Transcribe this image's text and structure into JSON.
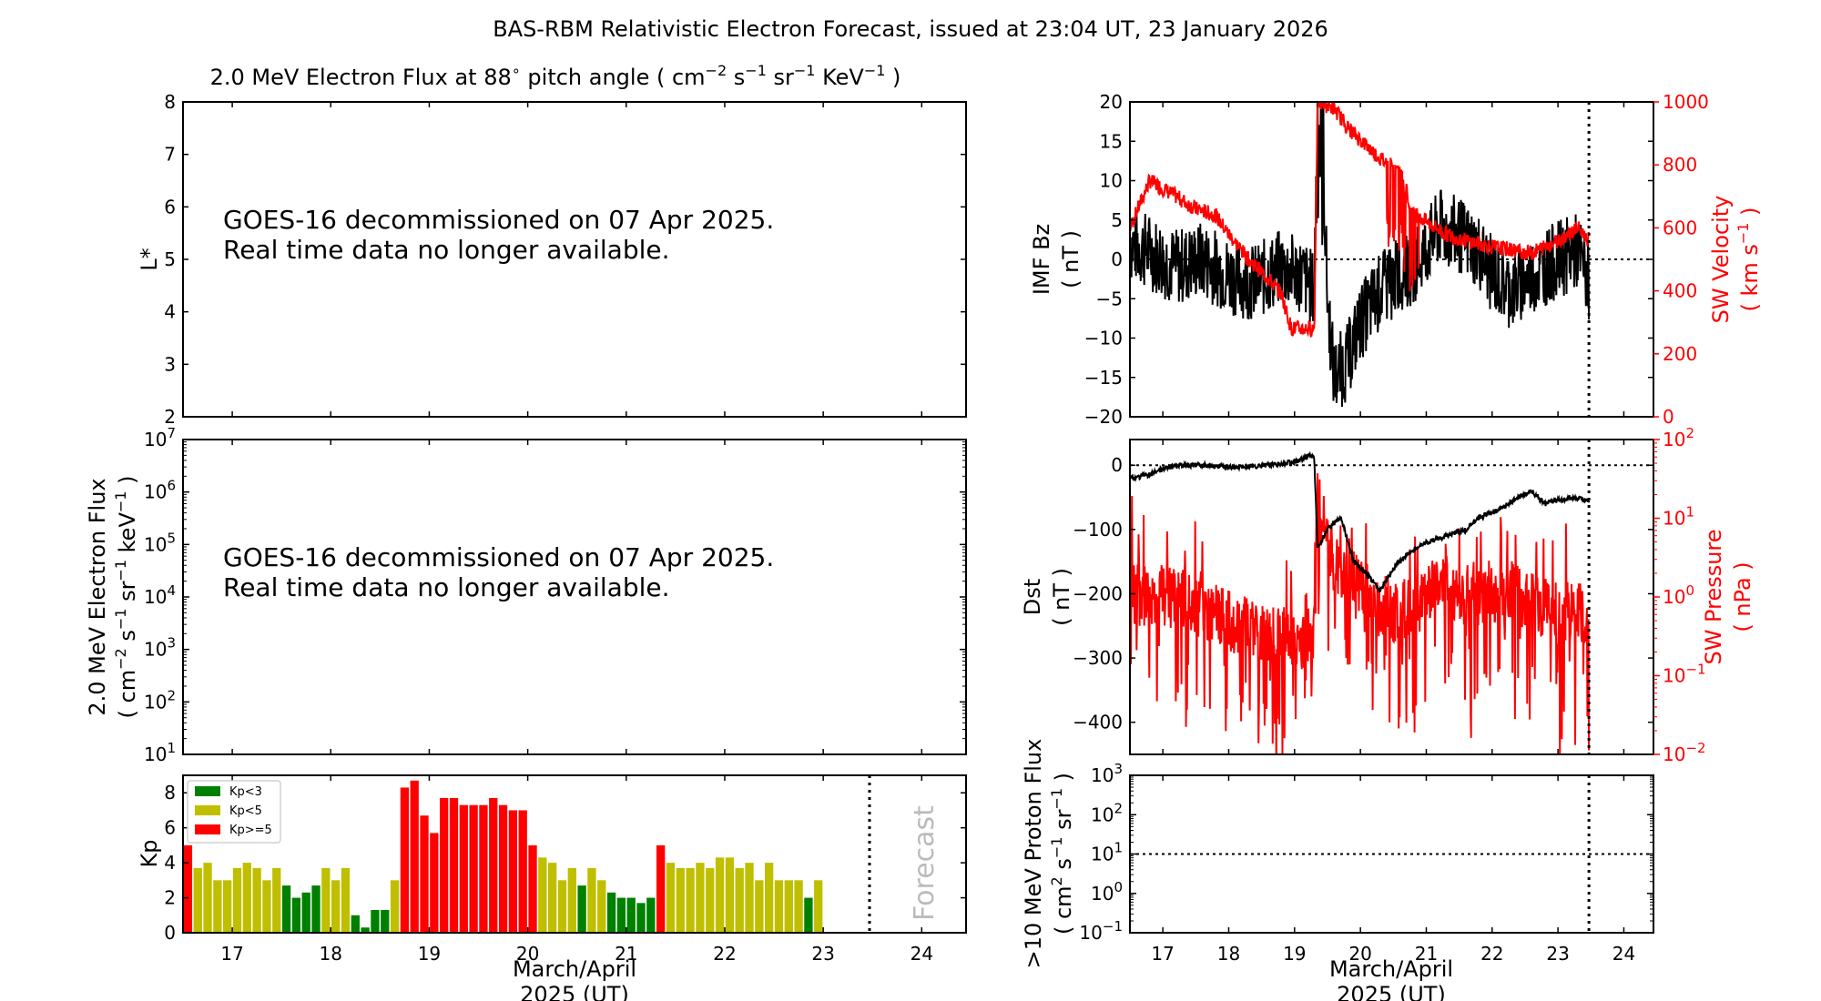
{
  "chart_data": {
    "type": "multi-panel",
    "title": "BAS-RBM Relativistic Electron Forecast, issued at 23:04 UT, 23 January 2026",
    "x_tick_labels": [
      "17",
      "18",
      "19",
      "20",
      "21",
      "22",
      "23",
      "24"
    ],
    "x_label_line1": "March/April",
    "x_label_line2": "2025 (UT)",
    "x_range": [
      16.5,
      24.45
    ],
    "forecast_time": 23.47,
    "panels": {
      "lstar": {
        "title_prefix": "2.0 MeV Electron Flux at 88",
        "title_suffix": " pitch angle ( cm",
        "ylabel": "L*",
        "ylim": [
          2,
          8
        ],
        "yticks": [
          "2",
          "3",
          "4",
          "5",
          "6",
          "7",
          "8"
        ],
        "note_line1": "GOES-16 decommissioned on 07 Apr 2025.",
        "note_line2": "Real time data no longer available."
      },
      "flux": {
        "ylabel_line1": "2.0 MeV Electron Flux",
        "ylabel_line2": "( cm",
        "ylim_exp": [
          1,
          7
        ],
        "ytick_exponents": [
          "1",
          "2",
          "3",
          "4",
          "5",
          "6",
          "7"
        ],
        "note_line1": "GOES-16 decommissioned on 07 Apr 2025.",
        "note_line2": "Real time data no longer available."
      },
      "kp": {
        "type": "bar",
        "ylabel": "Kp",
        "ylim": [
          0,
          9
        ],
        "yticks": [
          "0",
          "2",
          "4",
          "6",
          "8"
        ],
        "start_day": 16.5,
        "bar_width_days": 0.1,
        "values": [
          5.0,
          3.7,
          4.0,
          3.0,
          3.0,
          3.7,
          4.0,
          3.7,
          3.0,
          3.7,
          2.7,
          2.0,
          2.3,
          2.7,
          3.7,
          3.0,
          3.7,
          1.0,
          0.3,
          1.3,
          1.3,
          3.0,
          8.3,
          8.7,
          6.7,
          5.7,
          7.7,
          7.7,
          7.3,
          7.3,
          7.3,
          7.7,
          7.3,
          7.0,
          7.0,
          5.0,
          4.3,
          4.0,
          3.0,
          3.7,
          2.7,
          3.7,
          3.0,
          2.3,
          2.0,
          2.0,
          1.7,
          2.0,
          5.0,
          4.0,
          3.7,
          3.7,
          4.0,
          3.7,
          4.3,
          4.3,
          3.7,
          4.0,
          3.0,
          4.0,
          3.0,
          3.0,
          3.0,
          2.0,
          3.0
        ],
        "legend": [
          "Kp<3",
          "Kp<5",
          "Kp>=5"
        ],
        "colors": {
          "low": "#008000",
          "mid": "#bfbf00",
          "high": "#ff0000"
        },
        "forecast_label": "Forecast"
      },
      "imf": {
        "ylabel_line1": "IMF Bz",
        "ylabel_line2": "( nT )",
        "ylim": [
          -20,
          20
        ],
        "yticks": [
          "−20",
          "−15",
          "−10",
          "−5",
          "0",
          "5",
          "10",
          "15",
          "20"
        ],
        "y2label_line1": "SW Velocity",
        "y2label_line2": "( km s",
        "y2lim": [
          0,
          1000
        ],
        "y2ticks": [
          "0",
          "200",
          "400",
          "600",
          "800",
          "1000"
        ],
        "bz_keypoints": [
          [
            16.5,
            2
          ],
          [
            16.8,
            1
          ],
          [
            17.2,
            -1
          ],
          [
            17.6,
            0
          ],
          [
            18.0,
            -2
          ],
          [
            18.4,
            -3
          ],
          [
            18.8,
            -1
          ],
          [
            19.1,
            -2
          ],
          [
            19.3,
            -4
          ],
          [
            19.35,
            20
          ],
          [
            19.42,
            15
          ],
          [
            19.5,
            -5
          ],
          [
            19.6,
            -15
          ],
          [
            19.8,
            -13
          ],
          [
            20.0,
            -8
          ],
          [
            20.3,
            -4
          ],
          [
            20.6,
            -2
          ],
          [
            20.9,
            0
          ],
          [
            21.2,
            4
          ],
          [
            21.5,
            3
          ],
          [
            21.8,
            1
          ],
          [
            22.0,
            -2
          ],
          [
            22.3,
            -4
          ],
          [
            22.6,
            -2
          ],
          [
            23.0,
            0
          ],
          [
            23.3,
            1
          ],
          [
            23.47,
            -3
          ]
        ],
        "velocity_keypoints": [
          [
            16.5,
            600
          ],
          [
            16.8,
            750
          ],
          [
            17.2,
            700
          ],
          [
            17.5,
            660
          ],
          [
            17.8,
            640
          ],
          [
            18.0,
            580
          ],
          [
            18.3,
            500
          ],
          [
            18.6,
            440
          ],
          [
            18.8,
            390
          ],
          [
            18.95,
            280
          ],
          [
            19.3,
            280
          ],
          [
            19.35,
            1000
          ],
          [
            19.6,
            980
          ],
          [
            19.8,
            920
          ],
          [
            20.0,
            880
          ],
          [
            20.3,
            820
          ],
          [
            20.6,
            780
          ],
          [
            20.8,
            650
          ],
          [
            21.0,
            620
          ],
          [
            21.3,
            580
          ],
          [
            21.6,
            560
          ],
          [
            22.0,
            540
          ],
          [
            22.3,
            530
          ],
          [
            22.6,
            520
          ],
          [
            23.0,
            560
          ],
          [
            23.3,
            600
          ],
          [
            23.47,
            560
          ]
        ]
      },
      "dst": {
        "ylabel_line1": "Dst",
        "ylabel_line2": "( nT )",
        "ylim": [
          -450,
          40
        ],
        "yticks": [
          "−400",
          "−300",
          "−200",
          "−100",
          "0"
        ],
        "y2label_line1": "SW Pressure",
        "y2label_line2": "( nPa )",
        "y2ticks_exp": [
          "−2",
          "−1",
          "0",
          "1",
          "2"
        ],
        "dst_keypoints": [
          [
            16.5,
            -20
          ],
          [
            16.8,
            -15
          ],
          [
            17.0,
            -5
          ],
          [
            17.3,
            0
          ],
          [
            17.6,
            0
          ],
          [
            18.0,
            -3
          ],
          [
            18.3,
            -2
          ],
          [
            18.6,
            0
          ],
          [
            19.0,
            5
          ],
          [
            19.25,
            15
          ],
          [
            19.3,
            10
          ],
          [
            19.35,
            -130
          ],
          [
            19.5,
            -100
          ],
          [
            19.7,
            -80
          ],
          [
            19.9,
            -150
          ],
          [
            20.1,
            -170
          ],
          [
            20.3,
            -195
          ],
          [
            20.5,
            -160
          ],
          [
            20.7,
            -140
          ],
          [
            21.0,
            -120
          ],
          [
            21.3,
            -110
          ],
          [
            21.6,
            -100
          ],
          [
            21.8,
            -80
          ],
          [
            22.1,
            -70
          ],
          [
            22.4,
            -50
          ],
          [
            22.6,
            -40
          ],
          [
            22.8,
            -60
          ],
          [
            23.0,
            -55
          ],
          [
            23.2,
            -50
          ],
          [
            23.47,
            -55
          ]
        ],
        "pressure_keypoints": [
          [
            16.5,
            1.2
          ],
          [
            16.8,
            0.9
          ],
          [
            17.2,
            1.0
          ],
          [
            17.5,
            0.8
          ],
          [
            17.8,
            0.6
          ],
          [
            18.0,
            0.5
          ],
          [
            18.3,
            0.4
          ],
          [
            18.7,
            0.3
          ],
          [
            19.0,
            0.3
          ],
          [
            19.3,
            0.3
          ],
          [
            19.35,
            15
          ],
          [
            19.5,
            4
          ],
          [
            19.7,
            2
          ],
          [
            20.0,
            1.5
          ],
          [
            20.3,
            0.8
          ],
          [
            20.6,
            0.6
          ],
          [
            21.0,
            1.0
          ],
          [
            21.3,
            1.5
          ],
          [
            21.6,
            0.8
          ],
          [
            22.0,
            1.0
          ],
          [
            22.3,
            1.2
          ],
          [
            22.6,
            0.8
          ],
          [
            23.0,
            0.6
          ],
          [
            23.3,
            0.7
          ],
          [
            23.47,
            0.5
          ]
        ]
      },
      "proton": {
        "ylabel_line1": ">10 MeV Proton Flux",
        "ylabel_line2": "( cm",
        "ytick_exponents": [
          "−1",
          "0",
          "1",
          "2",
          "3"
        ],
        "ylim_exp": [
          -1,
          3
        ],
        "threshold": 10
      }
    }
  }
}
